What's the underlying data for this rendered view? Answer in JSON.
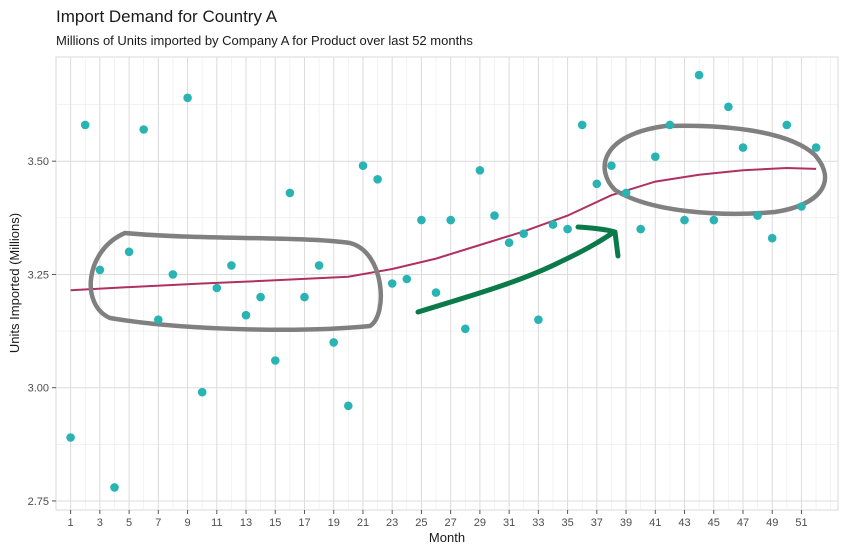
{
  "chart_data": {
    "type": "scatter",
    "title": "Import Demand for Country A",
    "subtitle": "Millions of Units imported by Company A for Product over last 52 months",
    "xlabel": "Month",
    "ylabel": "Units Imported (Millions)",
    "xlim": [
      0,
      53.5
    ],
    "ylim": [
      2.73,
      3.73
    ],
    "x_ticks": [
      1,
      3,
      5,
      7,
      9,
      11,
      13,
      15,
      17,
      19,
      21,
      23,
      25,
      27,
      29,
      31,
      33,
      35,
      37,
      39,
      41,
      43,
      45,
      47,
      49,
      51
    ],
    "y_ticks": [
      2.75,
      3.0,
      3.25,
      3.5
    ],
    "y_tick_labels": [
      "2.75",
      "3.00",
      "3.25",
      "3.50"
    ],
    "grid": true,
    "point_color": "#2ab3b3",
    "trend_color": "#b03060",
    "annotation_circle_color": "#808080",
    "annotation_arrow_color": "#0a7a4a",
    "series": [
      {
        "x": [
          1,
          2,
          3,
          4,
          5,
          6,
          7,
          8,
          9,
          10,
          11,
          12,
          13,
          14,
          15,
          16,
          17,
          18,
          19,
          20,
          21,
          22,
          23,
          24,
          25,
          26,
          27,
          28,
          29,
          30,
          31,
          32,
          33,
          34,
          35,
          36,
          37,
          38,
          39,
          40,
          41,
          42,
          43,
          44,
          45,
          46,
          47,
          48,
          49,
          50,
          51,
          52
        ],
        "y": [
          2.89,
          3.58,
          3.26,
          2.78,
          3.3,
          3.57,
          3.15,
          3.25,
          3.64,
          2.99,
          3.22,
          3.27,
          3.16,
          3.2,
          3.06,
          3.43,
          3.2,
          3.27,
          3.1,
          2.96,
          3.49,
          3.46,
          3.23,
          3.24,
          3.37,
          3.21,
          3.37,
          3.13,
          3.48,
          3.38,
          3.32,
          3.34,
          3.15,
          3.36,
          3.35,
          3.58,
          3.45,
          3.49,
          3.43,
          3.35,
          3.51,
          3.58,
          3.37,
          3.69,
          3.37,
          3.62,
          3.53,
          3.38,
          3.33,
          3.58,
          3.4,
          3.53
        ]
      }
    ],
    "trend": {
      "x": [
        1,
        5,
        10,
        15,
        20,
        23,
        26,
        29,
        32,
        35,
        38,
        41,
        44,
        47,
        50,
        52
      ],
      "y": [
        3.215,
        3.222,
        3.23,
        3.237,
        3.245,
        3.262,
        3.285,
        3.315,
        3.345,
        3.38,
        3.425,
        3.455,
        3.47,
        3.48,
        3.485,
        3.483
      ]
    }
  }
}
